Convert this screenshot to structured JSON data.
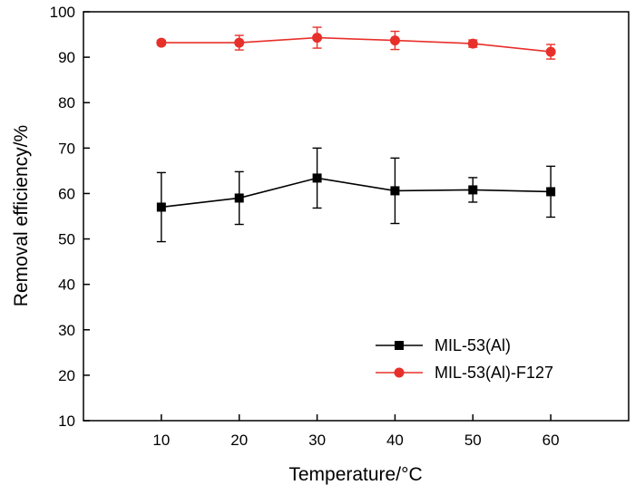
{
  "chart_data": {
    "type": "line",
    "title": "",
    "xlabel": "Temperature/°C",
    "ylabel": "Removal efficiency/%",
    "x": [
      10,
      20,
      30,
      40,
      50,
      60
    ],
    "xlim": [
      0,
      70
    ],
    "ylim": [
      10,
      100
    ],
    "xticks": [
      10,
      20,
      30,
      40,
      50,
      60
    ],
    "yticks": [
      10,
      20,
      30,
      40,
      50,
      60,
      70,
      80,
      90,
      100
    ],
    "grid": false,
    "legend_position": "bottom-right",
    "series": [
      {
        "name": "MIL-53(Al)",
        "color": "#000000",
        "marker": "square",
        "values": [
          57.0,
          59.0,
          63.4,
          60.6,
          60.8,
          60.4
        ],
        "errors": [
          7.6,
          5.8,
          6.6,
          7.2,
          2.7,
          5.6
        ]
      },
      {
        "name": "MIL-53(Al)-F127",
        "color": "#e8302a",
        "marker": "circle",
        "values": [
          93.2,
          93.2,
          94.3,
          93.7,
          93.0,
          91.2
        ],
        "errors": [
          0.5,
          1.6,
          2.3,
          2.0,
          0.8,
          1.6
        ]
      }
    ]
  }
}
